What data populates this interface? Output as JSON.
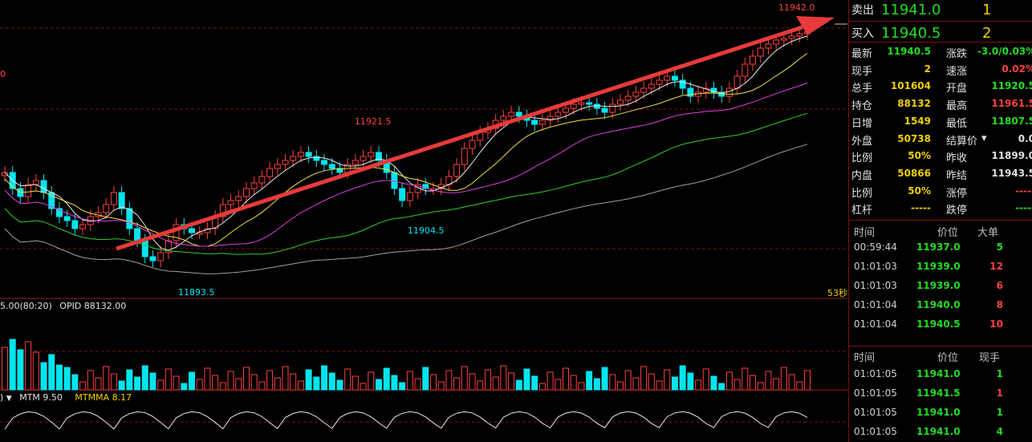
{
  "chart": {
    "price_labels": {
      "top_high": "11942.0",
      "high1": "11921.5",
      "low_mid": "11904.5",
      "low1": "11893.5",
      "left_edge": "0"
    },
    "countdown": "53秒",
    "indicator_header": {
      "param": "5.00(80:20)",
      "opid_label": "OPID",
      "opid_value": "88132.00"
    },
    "mtm_header": {
      "prefix": ")",
      "mtm_label": "MTM",
      "mtm_value": "9.50",
      "mtmma_label": "MTMMA",
      "mtmma_value": "8.17"
    },
    "colors": {
      "up": "#ff4040",
      "down": "#00e5ee",
      "arrow": "#e83a3a"
    }
  },
  "quote": {
    "sell": {
      "label": "卖出",
      "price": "11941.0",
      "qty": "1"
    },
    "buy": {
      "label": "买入",
      "price": "11940.5",
      "qty": "2"
    }
  },
  "stats_left": [
    {
      "k": "最新",
      "v": "11940.5",
      "color": "#22dd22"
    },
    {
      "k": "现手",
      "v": "2",
      "color": "#f0d000"
    },
    {
      "k": "总手",
      "v": "101604",
      "color": "#f0d000"
    },
    {
      "k": "持仓",
      "v": "88132",
      "color": "#f0d000"
    },
    {
      "k": "日增",
      "v": "1549",
      "color": "#f0d000"
    },
    {
      "k": "外盘",
      "v": "50738",
      "color": "#f0d000"
    },
    {
      "k": "比例",
      "v": "50%",
      "color": "#f0d000"
    },
    {
      "k": "内盘",
      "v": "50866",
      "color": "#f0d000"
    },
    {
      "k": "比例",
      "v": "50%",
      "color": "#f0d000"
    },
    {
      "k": "杠杆",
      "v": "-----",
      "color": "#f0d000"
    }
  ],
  "stats_right": [
    {
      "k": "涨跌",
      "v": "-3.0/0.03%",
      "color": "#22dd22"
    },
    {
      "k": "速涨",
      "v": "0.02%",
      "color": "#ff4040"
    },
    {
      "k": "开盘",
      "v": "11920.5",
      "color": "#22dd22"
    },
    {
      "k": "最高",
      "v": "11961.5",
      "color": "#ff4040"
    },
    {
      "k": "最低",
      "v": "11807.5",
      "color": "#22dd22"
    },
    {
      "k": "结算价",
      "v": "0.0",
      "color": "#e0e0e0"
    },
    {
      "k": "昨收",
      "v": "11899.0",
      "color": "#e0e0e0"
    },
    {
      "k": "昨结",
      "v": "11943.5",
      "color": "#e0e0e0"
    },
    {
      "k": "涨停",
      "v": "-----",
      "color": "#ff4040"
    },
    {
      "k": "跌停",
      "v": "-----",
      "color": "#22dd22"
    }
  ],
  "ticks1": {
    "headers": {
      "time": "时间",
      "price": "价位",
      "qty": "大单"
    },
    "rows": [
      {
        "time": "00:59:44",
        "price": "11937.0",
        "qty": "5",
        "qcolor": "#22dd22"
      },
      {
        "time": "01:01:03",
        "price": "11939.0",
        "qty": "12",
        "qcolor": "#ff4040"
      },
      {
        "time": "01:01:03",
        "price": "11939.0",
        "qty": "6",
        "qcolor": "#ff4040"
      },
      {
        "time": "01:01:04",
        "price": "11940.0",
        "qty": "8",
        "qcolor": "#ff4040"
      },
      {
        "time": "01:01:04",
        "price": "11940.5",
        "qty": "10",
        "qcolor": "#ff4040"
      }
    ]
  },
  "ticks2": {
    "headers": {
      "time": "时间",
      "price": "价位",
      "qty": "现手"
    },
    "rows": [
      {
        "time": "01:01:05",
        "price": "11941.0",
        "qty": "1",
        "qcolor": "#22dd22"
      },
      {
        "time": "01:01:05",
        "price": "11941.5",
        "qty": "1",
        "qcolor": "#ff4040"
      },
      {
        "time": "01:01:05",
        "price": "11941.0",
        "qty": "1",
        "qcolor": "#22dd22"
      },
      {
        "time": "01:01:05",
        "price": "11941.0",
        "qty": "4",
        "qcolor": "#22dd22"
      }
    ]
  }
}
